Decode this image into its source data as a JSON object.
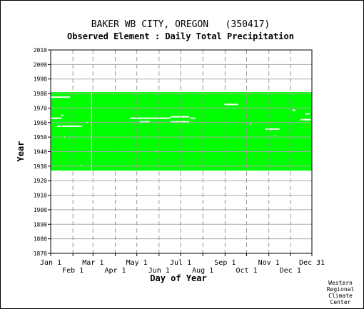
{
  "chart_data": {
    "type": "scatter",
    "title": "BAKER WB CITY, OREGON   (350417)",
    "subtitle": "Observed Element : Daily Total Precipitation",
    "xlabel": "Day of Year",
    "ylabel": "Year",
    "xlim": [
      1,
      365
    ],
    "ylim": [
      1870,
      2010
    ],
    "y_ticks": [
      1870,
      1880,
      1890,
      1900,
      1910,
      1920,
      1930,
      1940,
      1950,
      1960,
      1970,
      1980,
      1990,
      2000,
      2010
    ],
    "x_ticks_upper": [
      {
        "label": "Jan 1",
        "day": 1
      },
      {
        "label": "Mar 1",
        "day": 60
      },
      {
        "label": "May 1",
        "day": 121
      },
      {
        "label": "Jul 1",
        "day": 182
      },
      {
        "label": "Sep 1",
        "day": 244
      },
      {
        "label": "Nov 1",
        "day": 305
      },
      {
        "label": "Dec 31",
        "day": 365
      }
    ],
    "x_ticks_lower": [
      {
        "label": "Feb 1",
        "day": 32
      },
      {
        "label": "Apr 1",
        "day": 91
      },
      {
        "label": "Jun 1",
        "day": 152
      },
      {
        "label": "Aug 1",
        "day": 213
      },
      {
        "label": "Oct 1",
        "day": 274
      },
      {
        "label": "Dec 1",
        "day": 335
      }
    ],
    "grid": true,
    "data_color": "#00ff00",
    "gap_color": "#ffffff",
    "coverage": {
      "year_start": 1927,
      "year_end": 1981,
      "day_start": 1,
      "day_end": 365
    },
    "missing_segments": [
      {
        "year": 1977.5,
        "day_start": 1,
        "day_end": 28
      },
      {
        "year": 1963,
        "day_start": 1,
        "day_end": 16
      },
      {
        "year": 1965,
        "day_start": 16,
        "day_end": 19
      },
      {
        "year": 1957.5,
        "day_start": 10,
        "day_end": 16
      },
      {
        "year": 1957.5,
        "day_start": 17,
        "day_end": 45
      },
      {
        "year": 1960,
        "day_start": 50,
        "day_end": 53
      },
      {
        "year": 1963,
        "day_start": 112,
        "day_end": 168
      },
      {
        "year": 1960.5,
        "day_start": 125,
        "day_end": 139
      },
      {
        "year": 1964,
        "day_start": 168,
        "day_end": 194
      },
      {
        "year": 1960.5,
        "day_start": 168,
        "day_end": 194
      },
      {
        "year": 1963,
        "day_start": 195,
        "day_end": 203
      },
      {
        "year": 1972.5,
        "day_start": 243,
        "day_end": 262
      },
      {
        "year": 1955.5,
        "day_start": 300,
        "day_end": 320
      },
      {
        "year": 1968.5,
        "day_start": 338,
        "day_end": 342
      },
      {
        "year": 1966,
        "day_start": 356,
        "day_end": 362
      },
      {
        "year": 1962,
        "day_start": 349,
        "day_end": 364
      },
      {
        "year": 1941,
        "day_start": 147,
        "day_end": 148
      },
      {
        "year": 1950,
        "day_start": 20,
        "day_end": 21
      },
      {
        "year": 1959,
        "day_start": 279,
        "day_end": 280
      },
      {
        "year": 1951,
        "day_start": 313,
        "day_end": 314
      },
      {
        "year": 1931,
        "day_start": 43,
        "day_end": 44
      }
    ],
    "missing_days": [
      {
        "day": 58,
        "year_start": 1927,
        "year_end": 1981
      }
    ]
  },
  "credit": {
    "line1": "Western",
    "line2": "Regional",
    "line3": "Climate",
    "line4": "Center"
  }
}
